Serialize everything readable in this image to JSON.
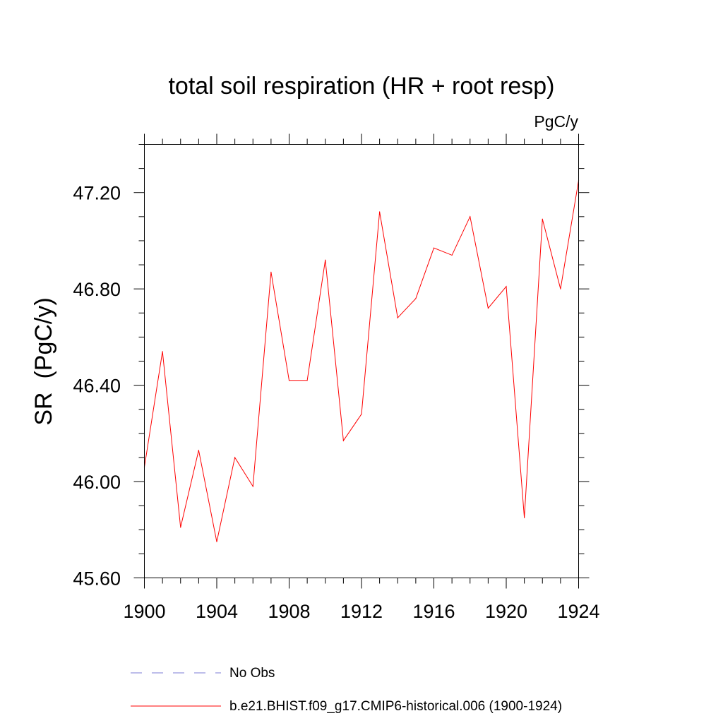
{
  "chart_data": {
    "type": "line",
    "title": "total soil respiration (HR + root resp)",
    "units": "PgC/y",
    "xlabel": "",
    "ylabel": "SR  (PgC/y)",
    "xlim": [
      1900,
      1924
    ],
    "ylim": [
      45.6,
      47.4
    ],
    "xticks": [
      1900,
      1904,
      1908,
      1912,
      1916,
      1920,
      1924
    ],
    "xtick_labels": [
      "1900",
      "1904",
      "1908",
      "1912",
      "1916",
      "1920",
      "1924"
    ],
    "yticks": [
      45.6,
      46.0,
      46.4,
      46.8,
      47.2
    ],
    "ytick_labels": [
      "45.60",
      "46.00",
      "46.40",
      "46.80",
      "47.20"
    ],
    "x_minor_step": 1,
    "y_minor_step": 0.1,
    "grid": false,
    "series": [
      {
        "name": "b.e21.BHIST.f09_g17.CMIP6-historical.006 (1900-1924)",
        "color": "#ff0000",
        "x": [
          1900,
          1901,
          1902,
          1903,
          1904,
          1905,
          1906,
          1907,
          1908,
          1909,
          1910,
          1911,
          1912,
          1913,
          1914,
          1915,
          1916,
          1917,
          1918,
          1919,
          1920,
          1921,
          1922,
          1923,
          1924
        ],
        "values": [
          46.06,
          46.54,
          45.81,
          46.13,
          45.75,
          46.1,
          45.98,
          46.87,
          46.42,
          46.42,
          46.92,
          46.17,
          46.28,
          47.12,
          46.68,
          46.76,
          46.97,
          46.94,
          47.1,
          46.72,
          46.81,
          45.85,
          47.09,
          46.8,
          47.25
        ]
      }
    ],
    "legend": [
      {
        "label": "No Obs",
        "color": "#7b7bd6",
        "style": "dashed"
      },
      {
        "label": "b.e21.BHIST.f09_g17.CMIP6-historical.006 (1900-1924)",
        "color": "#ff0000",
        "style": "solid"
      }
    ]
  }
}
